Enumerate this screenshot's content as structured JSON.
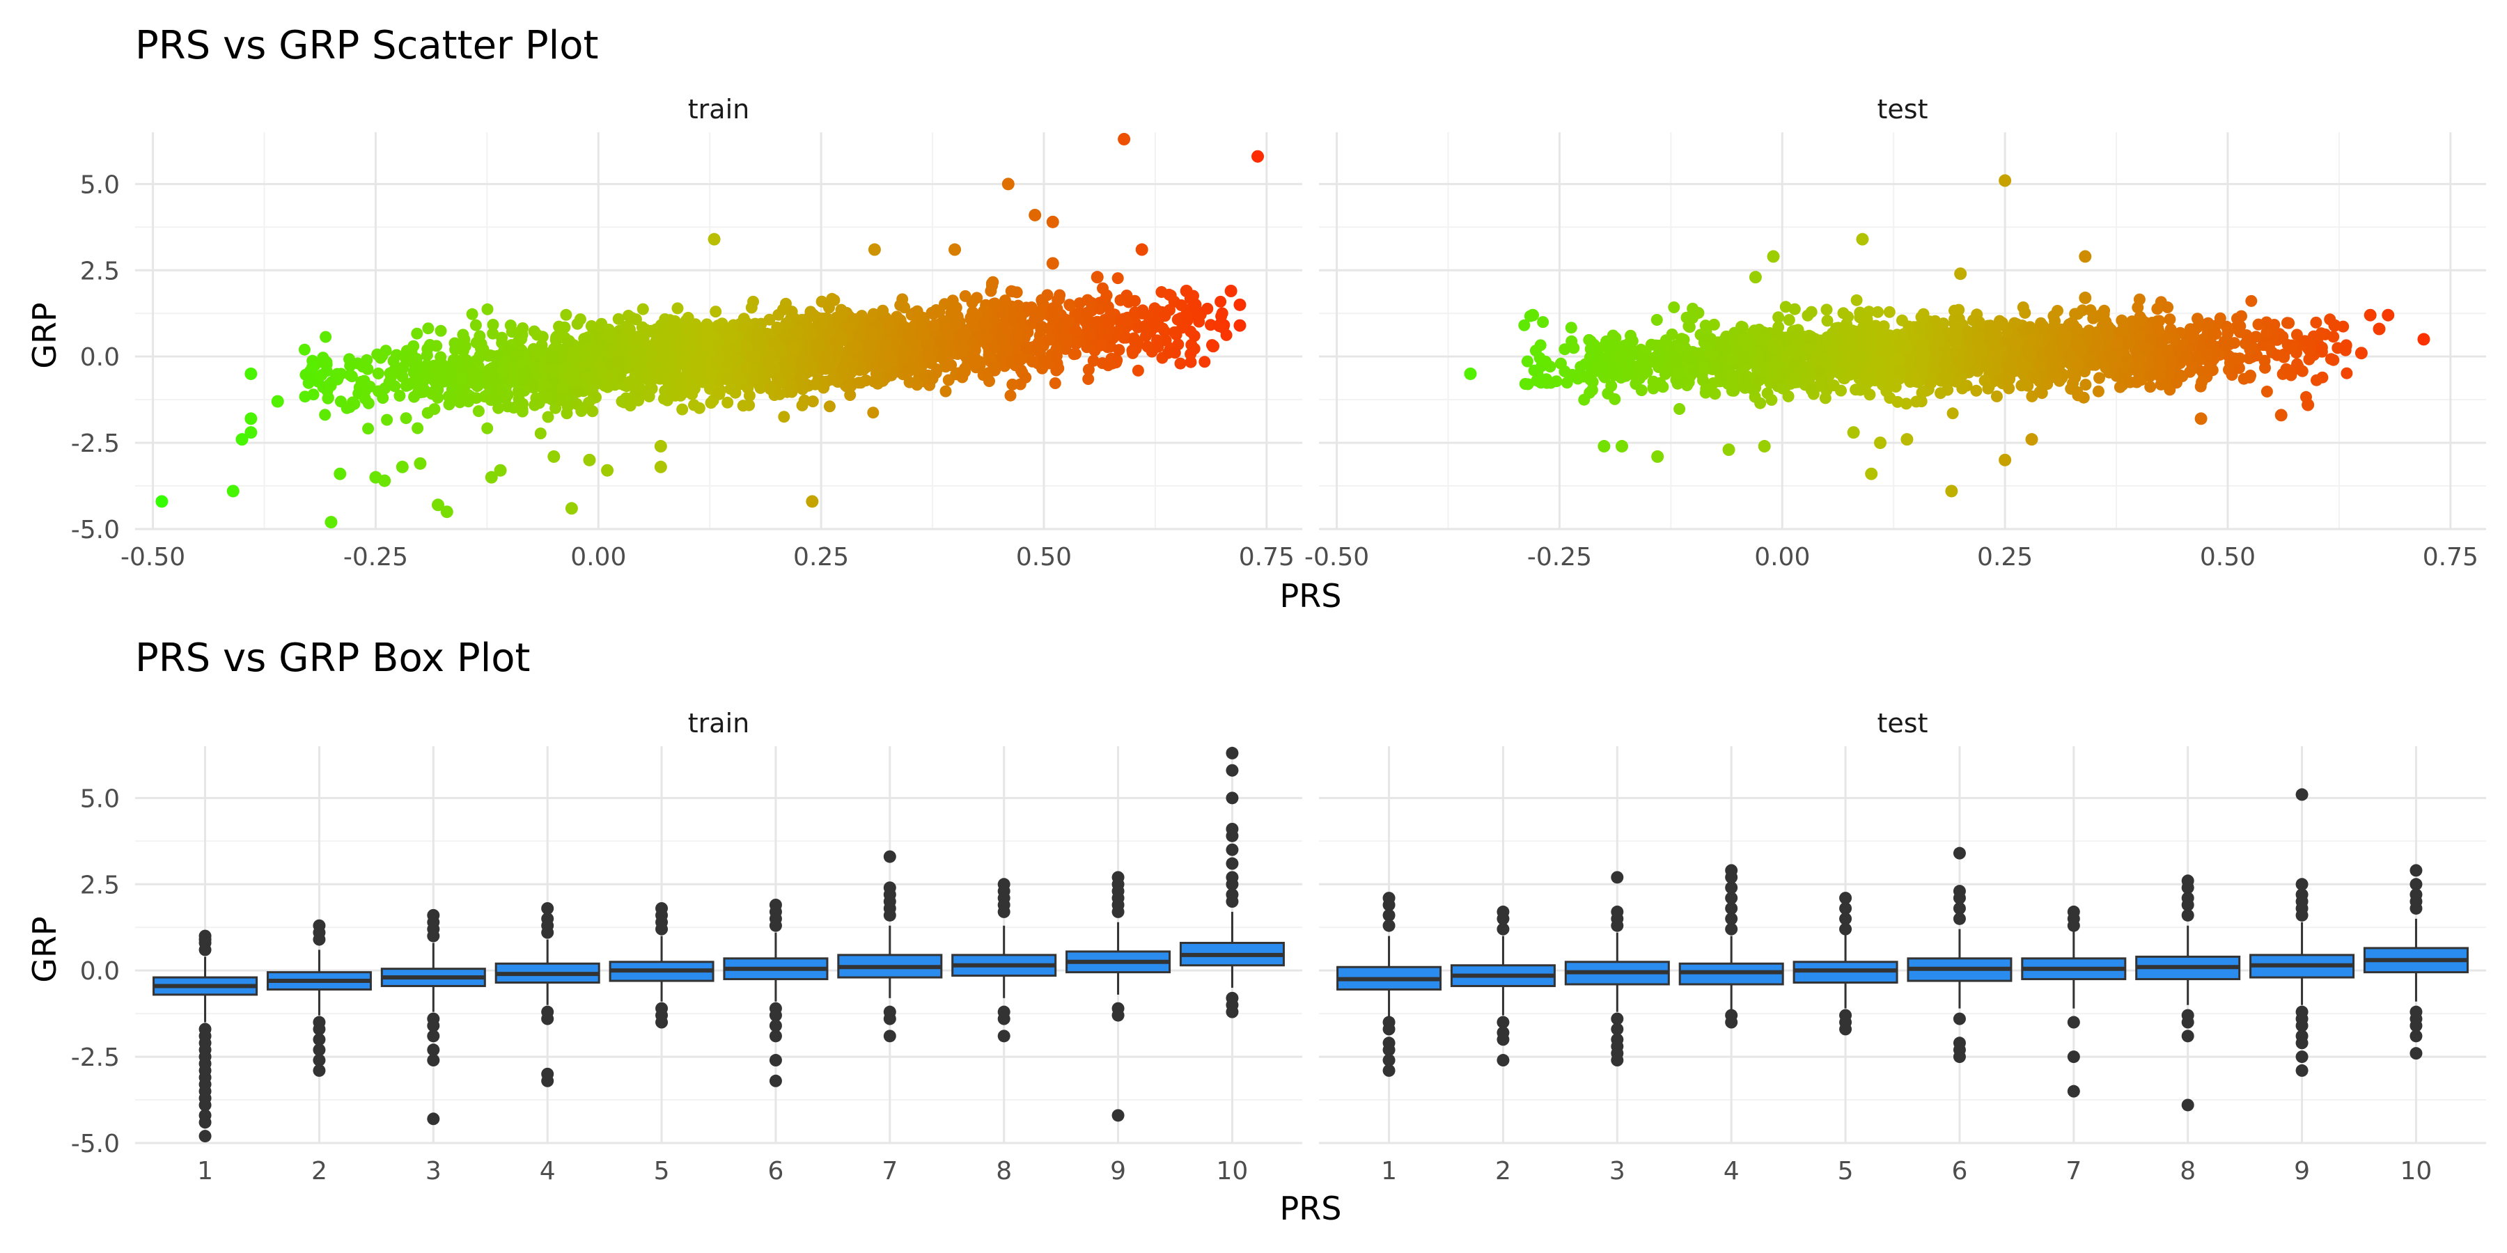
{
  "chart_data": [
    {
      "type": "scatter",
      "title": "PRS vs GRP Scatter Plot",
      "xlabel": "PRS",
      "ylabel": "GRP",
      "xlim": [
        -0.52,
        0.79
      ],
      "ylim": [
        -5.0,
        6.5
      ],
      "x_ticks": [
        "-0.50",
        "-0.25",
        "0.00",
        "0.25",
        "0.50",
        "0.75"
      ],
      "x_tick_values": [
        -0.5,
        -0.25,
        0.0,
        0.25,
        0.5,
        0.75
      ],
      "y_ticks": [
        "-5.0",
        "-2.5",
        "0.0",
        "2.5",
        "5.0"
      ],
      "y_tick_values": [
        -5.0,
        -2.5,
        0.0,
        2.5,
        5.0
      ],
      "grid": true,
      "color_scale": {
        "low": "#33ff00",
        "mid": "#b8bf00",
        "high": "#ff2a00",
        "domain": [
          -0.5,
          0.75
        ]
      },
      "facets": [
        {
          "strip": "train",
          "points": [
            {
              "x": -0.49,
              "y": -4.2
            },
            {
              "x": -0.41,
              "y": -3.9
            },
            {
              "x": -0.4,
              "y": -2.4
            },
            {
              "x": -0.39,
              "y": -2.2
            },
            {
              "x": -0.39,
              "y": -0.5
            },
            {
              "x": -0.39,
              "y": -1.8
            },
            {
              "x": -0.36,
              "y": -1.3
            },
            {
              "x": -0.3,
              "y": -4.8
            },
            {
              "x": -0.29,
              "y": -3.4
            },
            {
              "x": -0.25,
              "y": -3.5
            },
            {
              "x": -0.24,
              "y": -3.6
            },
            {
              "x": -0.22,
              "y": -3.2
            },
            {
              "x": -0.2,
              "y": -3.1
            },
            {
              "x": -0.18,
              "y": -4.3
            },
            {
              "x": -0.17,
              "y": -4.5
            },
            {
              "x": -0.12,
              "y": -3.5
            },
            {
              "x": -0.11,
              "y": -3.3
            },
            {
              "x": -0.05,
              "y": -2.9
            },
            {
              "x": -0.03,
              "y": -4.4
            },
            {
              "x": -0.01,
              "y": -3.0
            },
            {
              "x": 0.01,
              "y": -3.3
            },
            {
              "x": 0.07,
              "y": -3.2
            },
            {
              "x": 0.07,
              "y": -2.6
            },
            {
              "x": 0.24,
              "y": -4.2
            },
            {
              "x": 0.13,
              "y": 3.4
            },
            {
              "x": 0.31,
              "y": 3.1
            },
            {
              "x": 0.4,
              "y": 3.1
            },
            {
              "x": 0.46,
              "y": 5.0
            },
            {
              "x": 0.49,
              "y": 4.1
            },
            {
              "x": 0.51,
              "y": 3.9
            },
            {
              "x": 0.51,
              "y": 2.7
            },
            {
              "x": 0.56,
              "y": 2.3
            },
            {
              "x": 0.59,
              "y": 6.3
            },
            {
              "x": 0.61,
              "y": 3.1
            },
            {
              "x": 0.74,
              "y": 5.8
            },
            {
              "x": 0.71,
              "y": 1.9
            },
            {
              "x": 0.72,
              "y": 0.9
            },
            {
              "x": 0.72,
              "y": 1.5
            },
            {
              "x": 0.69,
              "y": 0.3
            },
            {
              "x": 0.66,
              "y": 1.9
            },
            {
              "x": 0.67,
              "y": 1.5
            }
          ]
        },
        {
          "strip": "test",
          "points": [
            {
              "x": -0.35,
              "y": -0.5
            },
            {
              "x": -0.28,
              "y": 1.2
            },
            {
              "x": -0.2,
              "y": -2.6
            },
            {
              "x": -0.18,
              "y": -2.6
            },
            {
              "x": -0.14,
              "y": -2.9
            },
            {
              "x": -0.06,
              "y": -2.7
            },
            {
              "x": -0.02,
              "y": -2.6
            },
            {
              "x": 0.1,
              "y": -3.4
            },
            {
              "x": 0.19,
              "y": -3.9
            },
            {
              "x": 0.25,
              "y": -3.0
            },
            {
              "x": 0.28,
              "y": -2.4
            },
            {
              "x": 0.11,
              "y": -2.5
            },
            {
              "x": 0.14,
              "y": -2.4
            },
            {
              "x": 0.08,
              "y": -2.2
            },
            {
              "x": 0.25,
              "y": 5.1
            },
            {
              "x": 0.09,
              "y": 3.4
            },
            {
              "x": -0.01,
              "y": 2.9
            },
            {
              "x": 0.34,
              "y": 2.9
            },
            {
              "x": 0.34,
              "y": 1.7
            },
            {
              "x": 0.2,
              "y": 2.4
            },
            {
              "x": -0.03,
              "y": 2.3
            },
            {
              "x": 0.72,
              "y": 0.5
            },
            {
              "x": 0.68,
              "y": 1.2
            },
            {
              "x": 0.66,
              "y": 1.2
            },
            {
              "x": 0.67,
              "y": 0.8
            },
            {
              "x": 0.65,
              "y": 0.1
            },
            {
              "x": 0.62,
              "y": 0.9
            },
            {
              "x": 0.56,
              "y": -1.7
            },
            {
              "x": 0.59,
              "y": -1.4
            },
            {
              "x": 0.47,
              "y": -1.8
            }
          ]
        }
      ]
    },
    {
      "type": "box",
      "title": "PRS vs GRP Box Plot",
      "xlabel": "PRS",
      "ylabel": "GRP",
      "ylim": [
        -5.0,
        6.5
      ],
      "categories": [
        "1",
        "2",
        "3",
        "4",
        "5",
        "6",
        "7",
        "8",
        "9",
        "10"
      ],
      "y_ticks": [
        "-5.0",
        "-2.5",
        "0.0",
        "2.5",
        "5.0"
      ],
      "y_tick_values": [
        -5.0,
        -2.5,
        0.0,
        2.5,
        5.0
      ],
      "grid": true,
      "box_color": "#2b8cf0",
      "facets": [
        {
          "strip": "train",
          "boxes": [
            {
              "cat": "1",
              "lowerWhisker": -1.5,
              "q1": -0.7,
              "median": -0.45,
              "q3": -0.2,
              "upperWhisker": 0.4,
              "outliers": [
                1.0,
                0.9,
                0.8,
                0.6,
                -1.7,
                -1.9,
                -2.1,
                -2.3,
                -2.5,
                -2.7,
                -2.9,
                -3.1,
                -3.3,
                -3.5,
                -3.7,
                -3.9,
                -4.2,
                -4.4,
                -4.8
              ]
            },
            {
              "cat": "2",
              "lowerWhisker": -1.3,
              "q1": -0.55,
              "median": -0.3,
              "q3": -0.05,
              "upperWhisker": 0.6,
              "outliers": [
                1.3,
                1.1,
                0.9,
                -1.5,
                -1.7,
                -2.0,
                -2.3,
                -2.6,
                -2.9
              ]
            },
            {
              "cat": "3",
              "lowerWhisker": -1.2,
              "q1": -0.45,
              "median": -0.2,
              "q3": 0.05,
              "upperWhisker": 0.8,
              "outliers": [
                1.6,
                1.4,
                1.2,
                1.0,
                -1.4,
                -1.6,
                -1.9,
                -2.3,
                -2.6,
                -4.3
              ]
            },
            {
              "cat": "4",
              "lowerWhisker": -1.0,
              "q1": -0.35,
              "median": -0.1,
              "q3": 0.2,
              "upperWhisker": 0.9,
              "outliers": [
                1.8,
                1.5,
                1.3,
                1.1,
                -1.2,
                -1.4,
                -3.0,
                -3.2
              ]
            },
            {
              "cat": "5",
              "lowerWhisker": -0.9,
              "q1": -0.3,
              "median": 0.0,
              "q3": 0.25,
              "upperWhisker": 1.0,
              "outliers": [
                1.8,
                1.6,
                1.4,
                1.2,
                -1.1,
                -1.3,
                -1.5
              ]
            },
            {
              "cat": "6",
              "lowerWhisker": -0.9,
              "q1": -0.25,
              "median": 0.05,
              "q3": 0.35,
              "upperWhisker": 1.1,
              "outliers": [
                1.9,
                1.7,
                1.5,
                1.3,
                -1.1,
                -1.3,
                -1.6,
                -1.9,
                -2.6,
                -3.2
              ]
            },
            {
              "cat": "7",
              "lowerWhisker": -0.8,
              "q1": -0.2,
              "median": 0.1,
              "q3": 0.45,
              "upperWhisker": 1.3,
              "outliers": [
                3.3,
                2.4,
                2.2,
                2.0,
                1.8,
                1.6,
                -1.2,
                -1.4,
                -1.9
              ]
            },
            {
              "cat": "8",
              "lowerWhisker": -0.8,
              "q1": -0.15,
              "median": 0.15,
              "q3": 0.45,
              "upperWhisker": 1.3,
              "outliers": [
                2.5,
                2.3,
                2.1,
                1.9,
                1.7,
                -1.2,
                -1.4,
                -1.9
              ]
            },
            {
              "cat": "9",
              "lowerWhisker": -0.7,
              "q1": -0.05,
              "median": 0.25,
              "q3": 0.55,
              "upperWhisker": 1.4,
              "outliers": [
                2.7,
                2.5,
                2.3,
                2.1,
                1.9,
                1.7,
                -1.1,
                -1.3,
                -4.2
              ]
            },
            {
              "cat": "10",
              "lowerWhisker": -0.5,
              "q1": 0.15,
              "median": 0.45,
              "q3": 0.8,
              "upperWhisker": 1.7,
              "outliers": [
                6.3,
                5.8,
                5.0,
                4.1,
                3.9,
                3.5,
                3.1,
                2.7,
                2.5,
                2.2,
                2.0,
                -0.8,
                -1.0,
                -1.2
              ]
            }
          ]
        },
        {
          "strip": "test",
          "boxes": [
            {
              "cat": "1",
              "lowerWhisker": -1.4,
              "q1": -0.55,
              "median": -0.25,
              "q3": 0.1,
              "upperWhisker": 1.0,
              "outliers": [
                2.1,
                1.9,
                1.6,
                1.3,
                -1.5,
                -1.7,
                -2.1,
                -2.3,
                -2.6,
                -2.9
              ]
            },
            {
              "cat": "2",
              "lowerWhisker": -1.3,
              "q1": -0.45,
              "median": -0.15,
              "q3": 0.15,
              "upperWhisker": 1.0,
              "outliers": [
                1.7,
                1.5,
                1.2,
                -1.5,
                -1.8,
                -2.0,
                -2.6
              ]
            },
            {
              "cat": "3",
              "lowerWhisker": -1.2,
              "q1": -0.4,
              "median": -0.05,
              "q3": 0.25,
              "upperWhisker": 1.1,
              "outliers": [
                2.7,
                1.7,
                1.5,
                1.3,
                -1.4,
                -1.7,
                -2.0,
                -2.2,
                -2.4,
                -2.6
              ]
            },
            {
              "cat": "4",
              "lowerWhisker": -1.2,
              "q1": -0.4,
              "median": -0.05,
              "q3": 0.2,
              "upperWhisker": 1.0,
              "outliers": [
                2.9,
                2.7,
                2.4,
                2.1,
                1.8,
                1.5,
                1.2,
                -1.3,
                -1.5
              ]
            },
            {
              "cat": "5",
              "lowerWhisker": -1.1,
              "q1": -0.35,
              "median": 0.0,
              "q3": 0.25,
              "upperWhisker": 1.1,
              "outliers": [
                2.1,
                1.8,
                1.5,
                1.2,
                -1.3,
                -1.5,
                -1.7
              ]
            },
            {
              "cat": "6",
              "lowerWhisker": -1.1,
              "q1": -0.3,
              "median": 0.05,
              "q3": 0.35,
              "upperWhisker": 1.2,
              "outliers": [
                3.4,
                2.3,
                2.1,
                1.8,
                1.5,
                -1.4,
                -2.1,
                -2.3,
                -2.5
              ]
            },
            {
              "cat": "7",
              "lowerWhisker": -1.1,
              "q1": -0.25,
              "median": 0.05,
              "q3": 0.35,
              "upperWhisker": 1.2,
              "outliers": [
                1.7,
                1.5,
                1.3,
                -1.5,
                -2.5,
                -3.5
              ]
            },
            {
              "cat": "8",
              "lowerWhisker": -1.0,
              "q1": -0.25,
              "median": 0.1,
              "q3": 0.4,
              "upperWhisker": 1.3,
              "outliers": [
                2.6,
                2.4,
                2.1,
                1.9,
                1.6,
                -1.3,
                -1.5,
                -1.9,
                -3.9
              ]
            },
            {
              "cat": "9",
              "lowerWhisker": -1.0,
              "q1": -0.2,
              "median": 0.15,
              "q3": 0.45,
              "upperWhisker": 1.4,
              "outliers": [
                5.1,
                2.5,
                2.2,
                2.0,
                1.8,
                1.6,
                -1.2,
                -1.4,
                -1.6,
                -1.9,
                -2.1,
                -2.5,
                -2.9
              ]
            },
            {
              "cat": "10",
              "lowerWhisker": -0.9,
              "q1": -0.05,
              "median": 0.3,
              "q3": 0.65,
              "upperWhisker": 1.5,
              "outliers": [
                2.9,
                2.5,
                2.2,
                2.0,
                1.8,
                -1.2,
                -1.4,
                -1.6,
                -1.9,
                -2.4
              ]
            }
          ]
        }
      ]
    }
  ]
}
